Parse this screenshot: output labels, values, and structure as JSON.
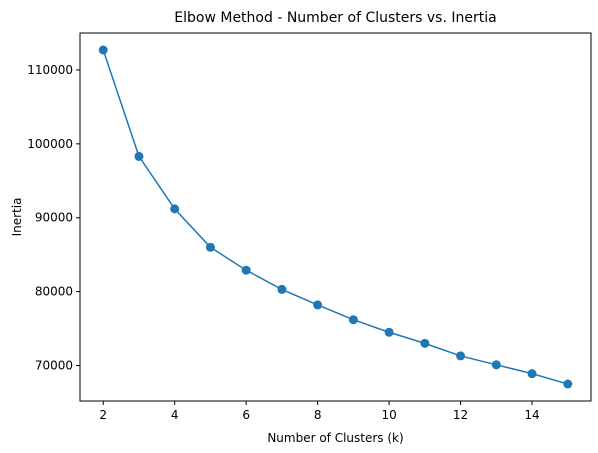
{
  "chart_data": {
    "type": "line",
    "title": "Elbow Method - Number of Clusters vs. Inertia",
    "xlabel": "Number of Clusters (k)",
    "ylabel": "Inertia",
    "xlim": [
      1.35,
      15.65
    ],
    "ylim": [
      65200,
      115000
    ],
    "xticks": [
      2,
      4,
      6,
      8,
      10,
      12,
      14
    ],
    "yticks": [
      70000,
      80000,
      90000,
      100000,
      110000
    ],
    "grid": false,
    "marker": "circle",
    "color": "#1f77b4",
    "series": [
      {
        "x": [
          2,
          3,
          4,
          5,
          6,
          7,
          8,
          9,
          10,
          11,
          12,
          13,
          14,
          15
        ],
        "values": [
          112700,
          98300,
          91200,
          86000,
          82900,
          80300,
          78200,
          76200,
          74500,
          73000,
          71300,
          70100,
          68900,
          67500
        ]
      }
    ]
  }
}
